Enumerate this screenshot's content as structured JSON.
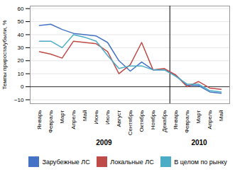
{
  "chart_data": {
    "type": "line",
    "categories": [
      "Январь",
      "Февраль",
      "Март",
      "Апрель",
      "Май",
      "Июнь",
      "Июль",
      "Август",
      "Сентябрь",
      "Октябрь",
      "Ноябрь",
      "Декабрь",
      "Январь",
      "Февраль",
      "Март",
      "Апрель",
      "Май"
    ],
    "series": [
      {
        "name": "Зарубежные ЛС",
        "color": "#4472c4",
        "values": [
          47,
          48,
          44,
          41,
          40,
          39,
          34,
          20,
          12,
          19,
          13,
          13,
          9,
          1,
          1,
          -4,
          -5
        ]
      },
      {
        "name": "Локальные ЛС",
        "color": "#be4b48",
        "values": [
          27,
          25,
          22,
          35,
          34,
          33,
          27,
          10,
          17,
          34,
          13,
          14,
          9,
          0,
          4,
          -1,
          -2
        ]
      },
      {
        "name": "В целом по рынку",
        "color": "#4bacc6",
        "values": [
          35,
          35,
          30,
          40,
          38,
          35,
          24,
          14,
          16,
          16,
          13,
          13,
          8,
          2,
          2,
          -3,
          -4
        ]
      }
    ],
    "y_label": "Темпы прироста/убыли, %",
    "annotations": [
      "2009",
      "2010"
    ],
    "ylim": [
      -13,
      62
    ],
    "yticks": [
      -10,
      0,
      10,
      20,
      30,
      40,
      50,
      60
    ],
    "grid": true,
    "legend": "bottom"
  }
}
